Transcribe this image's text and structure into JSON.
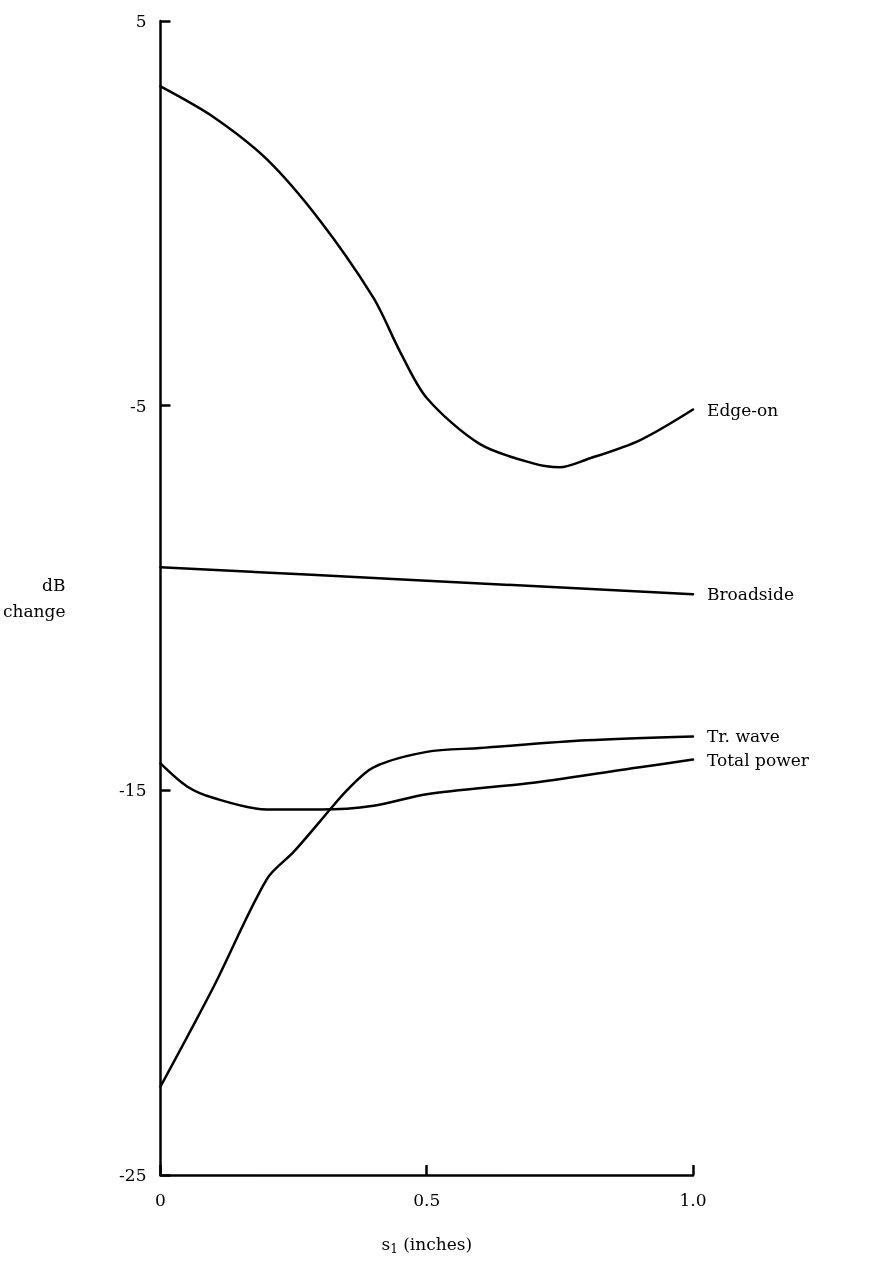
{
  "chart_data": {
    "type": "line",
    "xlabel": "s$_{1}$ (inches)",
    "ylabel": "dB change",
    "xlim": [
      0,
      1
    ],
    "xticks": [
      0,
      {
        "value": 0.5,
        "label": "0.5"
      },
      {
        "value": 1,
        "label": "1.0"
      }
    ],
    "ylim": [
      -25,
      5
    ],
    "yticks": [
      -25,
      -15,
      -5,
      5
    ],
    "grid": false,
    "legend": false,
    "marker": "none",
    "line_style": "solid",
    "series": [
      {
        "name": "Edge-on",
        "color": "#000000",
        "x": [
          0,
          0.1,
          0.2,
          0.3,
          0.4,
          0.45,
          0.5,
          0.6,
          0.7,
          0.75,
          0.8,
          0.9,
          1.0
        ],
        "values": [
          3.3,
          2.5,
          1.4,
          -0.2,
          -2.2,
          -3.6,
          -4.8,
          -6.0,
          -6.5,
          -6.6,
          -6.4,
          -5.9,
          -5.1
        ]
      },
      {
        "name": "Broadside",
        "color": "#000000",
        "x": [
          0,
          0.5,
          1.0
        ],
        "values": [
          -9.2,
          -9.55,
          -9.9
        ]
      },
      {
        "name": "Tr. wave",
        "color": "#000000",
        "x": [
          0,
          0.1,
          0.2,
          0.25,
          0.3,
          0.35,
          0.4,
          0.5,
          0.6,
          0.8,
          1.0
        ],
        "values": [
          -22.7,
          -20.1,
          -17.3,
          -16.6,
          -15.8,
          -15.0,
          -14.4,
          -14.0,
          -13.9,
          -13.7,
          -13.6
        ]
      },
      {
        "name": "Total power",
        "color": "#000000",
        "x": [
          0,
          0.05,
          0.1,
          0.2,
          0.3,
          0.4,
          0.5,
          0.7,
          0.9,
          1.0
        ],
        "values": [
          -14.3,
          -14.9,
          -15.2,
          -15.5,
          -15.5,
          -15.4,
          -15.1,
          -14.8,
          -14.4,
          -14.2
        ]
      }
    ]
  }
}
